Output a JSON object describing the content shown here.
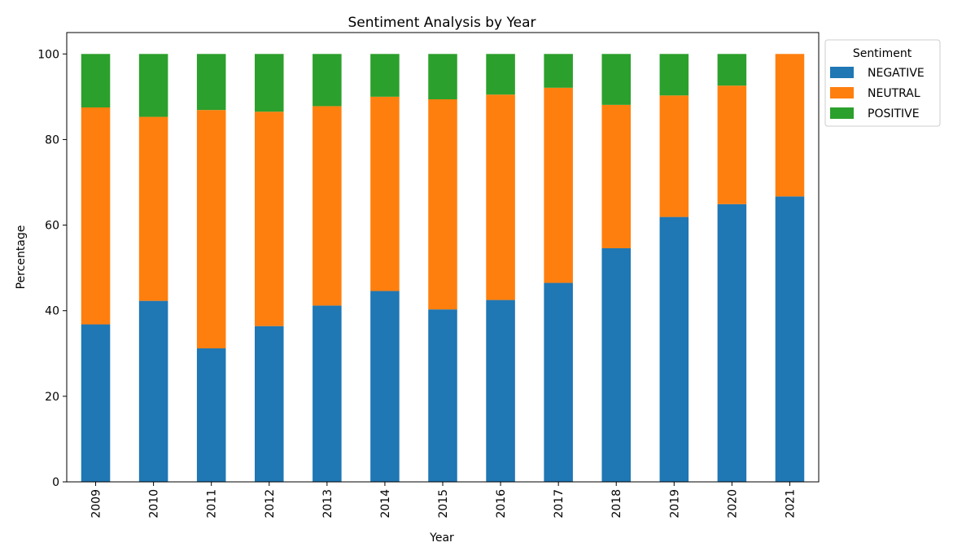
{
  "chart_data": {
    "type": "bar",
    "stacked": true,
    "title": "Sentiment Analysis by Year",
    "xlabel": "Year",
    "ylabel": "Percentage",
    "ylim": [
      0,
      105
    ],
    "yticks": [
      0,
      20,
      40,
      60,
      80,
      100
    ],
    "grid": false,
    "legend": {
      "title": "Sentiment",
      "placement": "outside top-right"
    },
    "categories": [
      "2009",
      "2010",
      "2011",
      "2012",
      "2013",
      "2014",
      "2015",
      "2016",
      "2017",
      "2018",
      "2019",
      "2020",
      "2021"
    ],
    "series": [
      {
        "name": "NEGATIVE",
        "color": "#1f77b4",
        "values": [
          36.8,
          42.3,
          31.2,
          36.4,
          41.2,
          44.6,
          40.3,
          42.5,
          46.5,
          54.6,
          61.9,
          64.9,
          66.7
        ]
      },
      {
        "name": "NEUTRAL",
        "color": "#ff7f0e",
        "values": [
          50.7,
          43.0,
          55.7,
          50.1,
          46.6,
          45.4,
          49.1,
          48.0,
          45.6,
          33.5,
          28.4,
          27.7,
          33.3
        ]
      },
      {
        "name": "POSITIVE",
        "color": "#2ca02c",
        "values": [
          12.5,
          14.7,
          13.1,
          13.5,
          12.2,
          10.0,
          10.6,
          9.5,
          7.9,
          11.9,
          9.7,
          7.4,
          0.0
        ]
      }
    ]
  }
}
